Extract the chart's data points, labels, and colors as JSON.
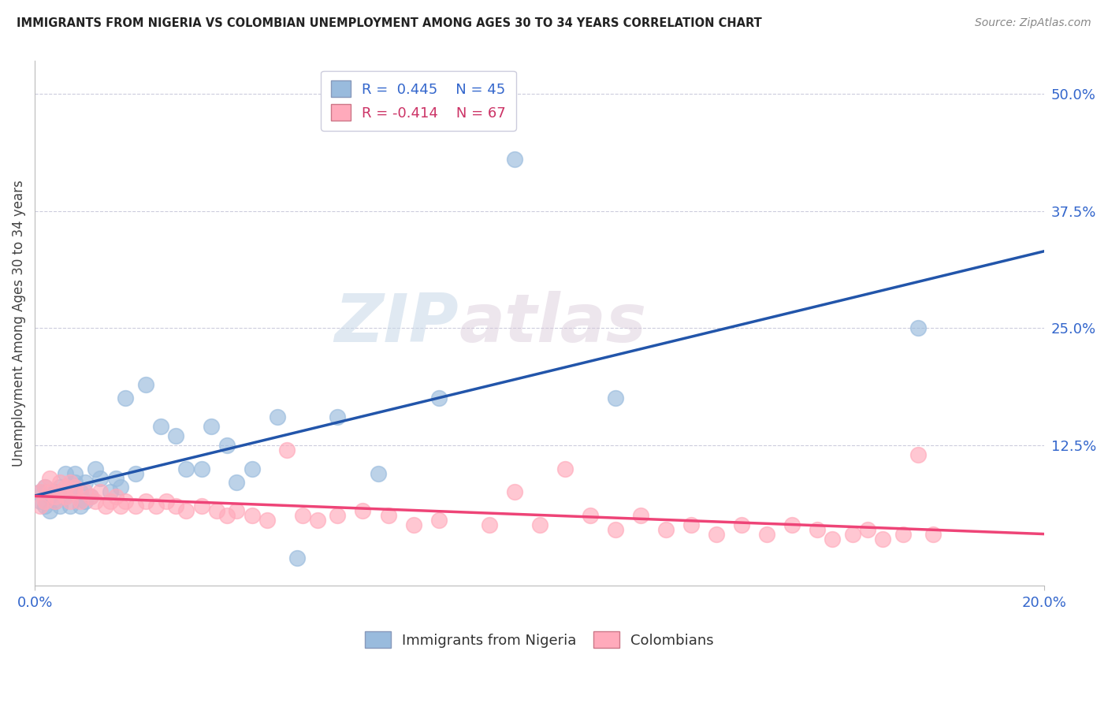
{
  "title": "IMMIGRANTS FROM NIGERIA VS COLOMBIAN UNEMPLOYMENT AMONG AGES 30 TO 34 YEARS CORRELATION CHART",
  "source": "Source: ZipAtlas.com",
  "ylabel_label": "Unemployment Among Ages 30 to 34 years",
  "right_ytick_labels": [
    "50.0%",
    "37.5%",
    "25.0%",
    "12.5%"
  ],
  "right_ytick_values": [
    0.5,
    0.375,
    0.25,
    0.125
  ],
  "xmin": 0.0,
  "xmax": 0.2,
  "ymin": -0.025,
  "ymax": 0.535,
  "legend_nigeria_label": "R =  0.445    N = 45",
  "legend_colombia_label": "R = -0.414    N = 67",
  "legend_bottom_nigeria": "Immigrants from Nigeria",
  "legend_bottom_colombia": "Colombians",
  "nigeria_color": "#99BBDD",
  "colombia_color": "#FFAABB",
  "nigeria_line_color": "#2255AA",
  "colombia_line_color": "#EE4477",
  "watermark_zip": "ZIP",
  "watermark_atlas": "atlas",
  "nigeria_scatter_x": [
    0.001,
    0.001,
    0.002,
    0.002,
    0.003,
    0.003,
    0.004,
    0.004,
    0.005,
    0.005,
    0.006,
    0.006,
    0.007,
    0.007,
    0.008,
    0.008,
    0.009,
    0.009,
    0.01,
    0.01,
    0.011,
    0.012,
    0.013,
    0.015,
    0.016,
    0.017,
    0.018,
    0.02,
    0.022,
    0.025,
    0.028,
    0.03,
    0.033,
    0.035,
    0.038,
    0.04,
    0.043,
    0.048,
    0.052,
    0.06,
    0.068,
    0.08,
    0.095,
    0.115,
    0.175
  ],
  "nigeria_scatter_y": [
    0.065,
    0.075,
    0.06,
    0.08,
    0.07,
    0.055,
    0.075,
    0.065,
    0.08,
    0.06,
    0.07,
    0.095,
    0.075,
    0.06,
    0.085,
    0.095,
    0.06,
    0.075,
    0.085,
    0.065,
    0.07,
    0.1,
    0.09,
    0.075,
    0.09,
    0.08,
    0.175,
    0.095,
    0.19,
    0.145,
    0.135,
    0.1,
    0.1,
    0.145,
    0.125,
    0.085,
    0.1,
    0.155,
    0.005,
    0.155,
    0.095,
    0.175,
    0.43,
    0.175,
    0.25
  ],
  "colombia_scatter_x": [
    0.001,
    0.001,
    0.002,
    0.002,
    0.003,
    0.003,
    0.004,
    0.004,
    0.005,
    0.005,
    0.006,
    0.006,
    0.007,
    0.007,
    0.008,
    0.008,
    0.009,
    0.01,
    0.011,
    0.012,
    0.013,
    0.014,
    0.015,
    0.016,
    0.017,
    0.018,
    0.02,
    0.022,
    0.024,
    0.026,
    0.028,
    0.03,
    0.033,
    0.036,
    0.038,
    0.04,
    0.043,
    0.046,
    0.05,
    0.053,
    0.056,
    0.06,
    0.065,
    0.07,
    0.075,
    0.08,
    0.09,
    0.095,
    0.1,
    0.105,
    0.11,
    0.115,
    0.12,
    0.125,
    0.13,
    0.135,
    0.14,
    0.145,
    0.15,
    0.155,
    0.158,
    0.162,
    0.165,
    0.168,
    0.172,
    0.175,
    0.178
  ],
  "colombia_scatter_y": [
    0.075,
    0.06,
    0.08,
    0.065,
    0.075,
    0.09,
    0.07,
    0.065,
    0.085,
    0.075,
    0.08,
    0.07,
    0.085,
    0.065,
    0.075,
    0.08,
    0.065,
    0.075,
    0.07,
    0.065,
    0.075,
    0.06,
    0.065,
    0.07,
    0.06,
    0.065,
    0.06,
    0.065,
    0.06,
    0.065,
    0.06,
    0.055,
    0.06,
    0.055,
    0.05,
    0.055,
    0.05,
    0.045,
    0.12,
    0.05,
    0.045,
    0.05,
    0.055,
    0.05,
    0.04,
    0.045,
    0.04,
    0.075,
    0.04,
    0.1,
    0.05,
    0.035,
    0.05,
    0.035,
    0.04,
    0.03,
    0.04,
    0.03,
    0.04,
    0.035,
    0.025,
    0.03,
    0.035,
    0.025,
    0.03,
    0.115,
    0.03
  ]
}
